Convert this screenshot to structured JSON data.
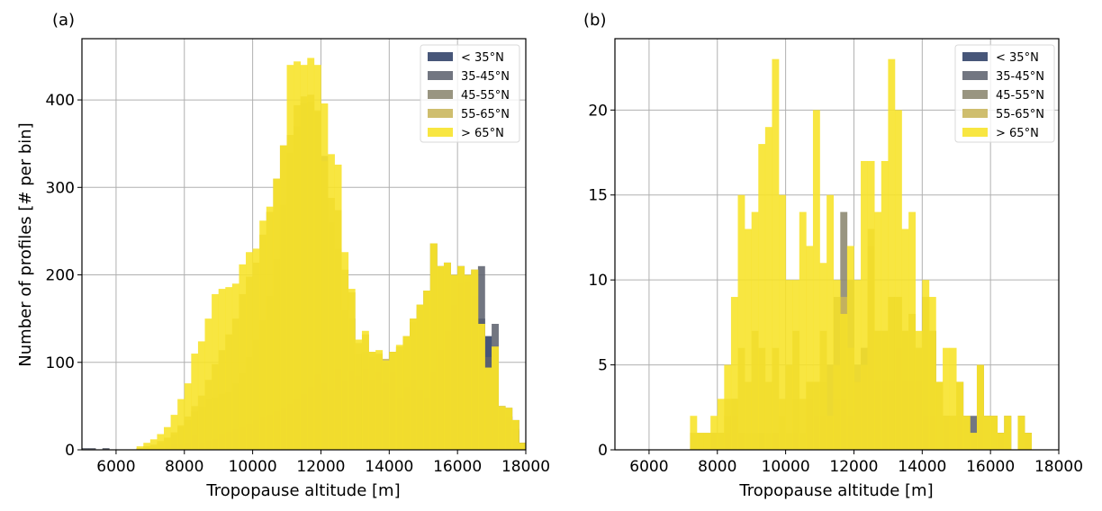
{
  "chart_data": [
    {
      "panel_label": "(a)",
      "type": "bar",
      "histogram": "overlaid",
      "xlabel": "Tropopause altitude [m]",
      "ylabel": "Number of profiles  [# per bin]",
      "xlim": [
        5000,
        18000
      ],
      "ylim": [
        0,
        470
      ],
      "xticks": [
        6000,
        8000,
        10000,
        12000,
        14000,
        16000,
        18000
      ],
      "yticks": [
        0,
        100,
        200,
        300,
        400
      ],
      "grid": true,
      "legend_position": "top-right",
      "bin_start": 5000,
      "bin_width": 200,
      "series": [
        {
          "name": "< 35°N",
          "color": "#2e3f66",
          "values": [
            0,
            0,
            0,
            0,
            0,
            0,
            0,
            0,
            0,
            0,
            0,
            0,
            0,
            0,
            0,
            0,
            0,
            0,
            0,
            0,
            0,
            0,
            0,
            0,
            0,
            0,
            0,
            0,
            0,
            0,
            0,
            0,
            0,
            0,
            0,
            0,
            2,
            4,
            0,
            6,
            8,
            10,
            12,
            14,
            12,
            10,
            8,
            12,
            16,
            26,
            28,
            32,
            44,
            64,
            76,
            100,
            128,
            124,
            150,
            130,
            106,
            48,
            38,
            22,
            8
          ]
        },
        {
          "name": "35-45°N",
          "color": "#5f6370",
          "values": [
            2,
            2,
            0,
            2,
            0,
            0,
            0,
            0,
            0,
            0,
            2,
            2,
            4,
            6,
            6,
            8,
            16,
            8,
            10,
            12,
            18,
            20,
            24,
            26,
            30,
            34,
            38,
            40,
            44,
            48,
            52,
            58,
            64,
            72,
            86,
            76,
            68,
            92,
            78,
            90,
            84,
            92,
            80,
            88,
            76,
            88,
            60,
            72,
            80,
            68,
            60,
            88,
            114,
            136,
            165,
            190,
            192,
            176,
            210,
            106,
            144,
            50,
            28,
            24,
            8
          ]
        },
        {
          "name": "45-55°N",
          "color": "#8b8670",
          "values": [
            0,
            0,
            0,
            0,
            0,
            0,
            0,
            0,
            2,
            4,
            4,
            8,
            12,
            18,
            26,
            34,
            44,
            50,
            58,
            60,
            64,
            66,
            76,
            88,
            106,
            126,
            148,
            176,
            218,
            280,
            340,
            370,
            396,
            398,
            386,
            336,
            260,
            230,
            160,
            150,
            110,
            112,
            106,
            108,
            100,
            112,
            114,
            126,
            146,
            160,
            182,
            236,
            210,
            214,
            200,
            210,
            200,
            206,
            144,
            94,
            118,
            50,
            48,
            34,
            8
          ]
        },
        {
          "name": "55-65°N",
          "color": "#c8b55a",
          "values": [
            0,
            0,
            0,
            0,
            0,
            0,
            0,
            0,
            2,
            4,
            6,
            10,
            14,
            20,
            28,
            38,
            50,
            62,
            80,
            98,
            114,
            132,
            150,
            178,
            198,
            214,
            246,
            272,
            310,
            348,
            360,
            394,
            404,
            406,
            388,
            330,
            288,
            274,
            206,
            180,
            122,
            132,
            112,
            110,
            104,
            112,
            118,
            130,
            150,
            166,
            182,
            236,
            210,
            214,
            200,
            210,
            200,
            206,
            144,
            94,
            118,
            50,
            48,
            34,
            8
          ]
        },
        {
          "name": "> 65°N",
          "color": "#f7e327",
          "values": [
            0,
            0,
            0,
            0,
            0,
            0,
            0,
            0,
            4,
            8,
            12,
            18,
            26,
            40,
            58,
            76,
            110,
            124,
            150,
            178,
            184,
            186,
            190,
            212,
            226,
            230,
            262,
            278,
            310,
            348,
            440,
            444,
            440,
            448,
            440,
            396,
            338,
            326,
            226,
            184,
            126,
            136,
            112,
            114,
            102,
            112,
            120,
            130,
            150,
            166,
            182,
            236,
            210,
            214,
            200,
            210,
            200,
            206,
            144,
            94,
            118,
            50,
            48,
            34,
            8
          ]
        }
      ]
    },
    {
      "panel_label": "(b)",
      "type": "bar",
      "histogram": "overlaid",
      "xlabel": "Tropopause altitude [m]",
      "ylabel": "",
      "xlim": [
        5000,
        18000
      ],
      "ylim": [
        0,
        24.2
      ],
      "xticks": [
        6000,
        8000,
        10000,
        12000,
        14000,
        16000,
        18000
      ],
      "yticks": [
        0,
        5,
        10,
        15,
        20
      ],
      "grid": true,
      "legend_position": "top-right",
      "bin_start": 5000,
      "bin_width": 200,
      "series": [
        {
          "name": "< 35°N",
          "color": "#2e3f66",
          "values": [
            0,
            0,
            0,
            0,
            0,
            0,
            0,
            0,
            0,
            0,
            0,
            0,
            0,
            0,
            0,
            0,
            0,
            0,
            0,
            0,
            0,
            0,
            0,
            0,
            0,
            0,
            0,
            0,
            0,
            0,
            0,
            0,
            0,
            0,
            0,
            0,
            0,
            0,
            0,
            0,
            0,
            0,
            0,
            0,
            0,
            0,
            0,
            0,
            0,
            0,
            0,
            0,
            0,
            0,
            0,
            0,
            1,
            0,
            0,
            0,
            0,
            0,
            0,
            0,
            0
          ]
        },
        {
          "name": "35-45°N",
          "color": "#5f6370",
          "values": [
            0,
            0,
            0,
            0,
            0,
            0,
            0,
            0,
            0,
            0,
            0,
            0,
            0,
            0,
            1,
            0,
            1,
            2,
            1,
            0,
            0,
            1,
            0,
            1,
            0,
            0,
            1,
            0,
            3,
            2,
            2,
            2,
            3,
            3,
            2,
            4,
            6,
            12,
            4,
            4,
            4,
            6,
            4,
            4,
            4,
            2,
            2,
            0,
            2,
            0,
            2,
            0,
            2,
            2,
            0,
            0,
            1,
            0,
            0,
            0,
            1,
            0,
            0,
            0,
            0
          ]
        },
        {
          "name": "45-55°N",
          "color": "#8b8670",
          "values": [
            0,
            0,
            0,
            0,
            0,
            0,
            0,
            0,
            0,
            0,
            0,
            0,
            0,
            0,
            1,
            1,
            2,
            3,
            1,
            1,
            1,
            0,
            1,
            1,
            2,
            1,
            3,
            1,
            4,
            4,
            4,
            5,
            9,
            14,
            10,
            5,
            6,
            12,
            7,
            7,
            9,
            9,
            7,
            8,
            6,
            9,
            7,
            4,
            2,
            2,
            4,
            2,
            1,
            5,
            2,
            2,
            1,
            2,
            0,
            2,
            1,
            0,
            0,
            0,
            0
          ]
        },
        {
          "name": "55-65°N",
          "color": "#c8b55a",
          "values": [
            0,
            0,
            0,
            0,
            0,
            0,
            0,
            0,
            0,
            0,
            0,
            1,
            1,
            1,
            1,
            1,
            3,
            3,
            6,
            4,
            7,
            6,
            4,
            6,
            3,
            5,
            7,
            3,
            4,
            4,
            7,
            2,
            5,
            9,
            6,
            4,
            5,
            13,
            7,
            7,
            9,
            9,
            7,
            8,
            6,
            9,
            7,
            4,
            2,
            2,
            4,
            2,
            1,
            5,
            2,
            2,
            1,
            2,
            0,
            2,
            1,
            0,
            0,
            0,
            0
          ]
        },
        {
          "name": "> 65°N",
          "color": "#f7e327",
          "values": [
            0,
            0,
            0,
            0,
            0,
            0,
            0,
            0,
            0,
            0,
            0,
            2,
            1,
            1,
            2,
            3,
            5,
            9,
            15,
            13,
            14,
            18,
            19,
            23,
            15,
            10,
            10,
            14,
            12,
            20,
            11,
            15,
            10,
            8,
            12,
            10,
            17,
            17,
            14,
            17,
            23,
            20,
            13,
            14,
            7,
            10,
            9,
            4,
            6,
            6,
            4,
            2,
            1,
            5,
            2,
            2,
            1,
            2,
            0,
            2,
            1,
            0,
            0,
            0,
            0
          ]
        }
      ]
    }
  ]
}
